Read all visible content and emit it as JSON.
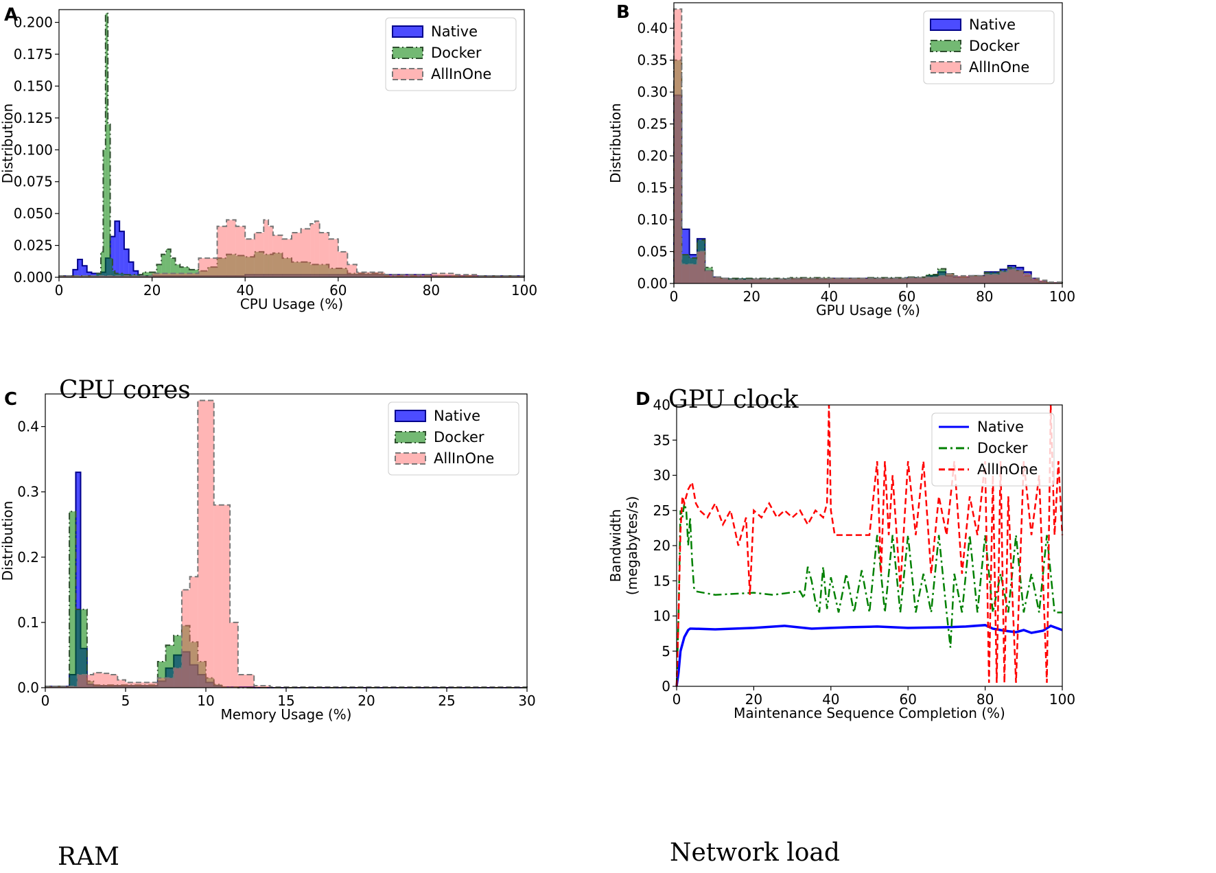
{
  "panels": [
    {
      "letter": "A",
      "caption": "CPU cores",
      "chart_data": {
        "type": "histogram",
        "xlabel": "CPU Usage (%)",
        "ylabel": "Distribution",
        "xlim": [
          0,
          100
        ],
        "ylim": [
          0,
          0.21
        ],
        "xticks": [
          0,
          20,
          40,
          60,
          80,
          100
        ],
        "yticks": [
          0.0,
          0.025,
          0.05,
          0.075,
          0.1,
          0.125,
          0.15,
          0.175,
          0.2
        ],
        "ytick_labels": [
          "0.000",
          "0.025",
          "0.050",
          "0.075",
          "0.100",
          "0.125",
          "0.150",
          "0.175",
          "0.200"
        ],
        "legend_position": "top-right",
        "series": [
          {
            "name": "Native",
            "edges": [
              0,
              3,
              4,
              5,
              6,
              7,
              8,
              9,
              10,
              11,
              12,
              13,
              14,
              15,
              16,
              17,
              18,
              20,
              25,
              30,
              35,
              40,
              45,
              50,
              55,
              60,
              65,
              70,
              80,
              90,
              100
            ],
            "values": [
              0.001,
              0.006,
              0.014,
              0.009,
              0.004,
              0.003,
              0.003,
              0.004,
              0.015,
              0.032,
              0.044,
              0.036,
              0.022,
              0.012,
              0.005,
              0.002,
              0.001,
              0.001,
              0.001,
              0.001,
              0.001,
              0.002,
              0.002,
              0.002,
              0.002,
              0.002,
              0.002,
              0.002,
              0.001,
              0.001
            ]
          },
          {
            "name": "Docker",
            "edges": [
              0,
              8,
              9,
              9.5,
              10,
              10.5,
              11,
              11.5,
              12,
              14,
              18,
              21,
              22,
              23,
              24,
              25,
              26,
              28,
              30,
              32,
              34,
              36,
              38,
              40,
              42,
              44,
              46,
              48,
              50,
              54,
              58,
              62,
              70,
              100
            ],
            "values": [
              0.001,
              0.003,
              0.02,
              0.1,
              0.207,
              0.12,
              0.015,
              0.005,
              0.003,
              0.002,
              0.004,
              0.01,
              0.018,
              0.022,
              0.015,
              0.01,
              0.008,
              0.006,
              0.005,
              0.008,
              0.015,
              0.018,
              0.017,
              0.016,
              0.02,
              0.018,
              0.019,
              0.015,
              0.012,
              0.01,
              0.007,
              0.003,
              0.001
            ]
          },
          {
            "name": "AllInOne",
            "edges": [
              0,
              20,
              30,
              34,
              36,
              38,
              40,
              42,
              44,
              45,
              46,
              48,
              50,
              52,
              54,
              55,
              56,
              58,
              60,
              62,
              64,
              70,
              80,
              85,
              90,
              100
            ],
            "values": [
              0.001,
              0.003,
              0.015,
              0.04,
              0.045,
              0.04,
              0.03,
              0.035,
              0.045,
              0.04,
              0.033,
              0.03,
              0.035,
              0.038,
              0.042,
              0.044,
              0.035,
              0.03,
              0.02,
              0.01,
              0.004,
              0.002,
              0.003,
              0.002,
              0.001
            ]
          }
        ]
      }
    },
    {
      "letter": "B",
      "caption": "GPU clock",
      "chart_data": {
        "type": "histogram",
        "xlabel": "GPU Usage (%)",
        "ylabel": "Distribution",
        "xlim": [
          0,
          100
        ],
        "ylim": [
          0,
          0.44
        ],
        "xticks": [
          0,
          20,
          40,
          60,
          80,
          100
        ],
        "yticks": [
          0.0,
          0.05,
          0.1,
          0.15,
          0.2,
          0.25,
          0.3,
          0.35,
          0.4
        ],
        "ytick_labels": [
          "0.00",
          "0.05",
          "0.10",
          "0.15",
          "0.20",
          "0.25",
          "0.30",
          "0.35",
          "0.40"
        ],
        "legend_position": "top-right",
        "series": [
          {
            "name": "Native",
            "edges": [
              0,
              2,
              4,
              6,
              8,
              10,
              12,
              14,
              20,
              30,
              40,
              50,
              60,
              65,
              68,
              70,
              72,
              76,
              80,
              84,
              86,
              88,
              90,
              92,
              94,
              96,
              100
            ],
            "values": [
              0.295,
              0.085,
              0.045,
              0.07,
              0.02,
              0.01,
              0.008,
              0.007,
              0.007,
              0.007,
              0.008,
              0.008,
              0.009,
              0.012,
              0.018,
              0.012,
              0.01,
              0.012,
              0.018,
              0.022,
              0.028,
              0.025,
              0.018,
              0.008,
              0.003,
              0.001
            ]
          },
          {
            "name": "Docker",
            "edges": [
              0,
              2,
              4,
              6,
              8,
              10,
              12,
              14,
              20,
              30,
              40,
              50,
              60,
              65,
              68,
              70,
              72,
              76,
              80,
              84,
              86,
              88,
              90,
              92,
              94,
              96,
              100
            ],
            "values": [
              0.35,
              0.045,
              0.04,
              0.068,
              0.025,
              0.01,
              0.008,
              0.008,
              0.008,
              0.009,
              0.008,
              0.009,
              0.01,
              0.014,
              0.023,
              0.015,
              0.01,
              0.012,
              0.017,
              0.02,
              0.025,
              0.02,
              0.012,
              0.006,
              0.003,
              0.001
            ]
          },
          {
            "name": "AllInOne",
            "edges": [
              0,
              2,
              4,
              6,
              8,
              10,
              12,
              14,
              20,
              30,
              40,
              50,
              60,
              65,
              68,
              70,
              72,
              76,
              80,
              84,
              86,
              88,
              90,
              92,
              94,
              96,
              100
            ],
            "values": [
              0.43,
              0.03,
              0.03,
              0.05,
              0.02,
              0.01,
              0.008,
              0.006,
              0.007,
              0.008,
              0.008,
              0.008,
              0.009,
              0.01,
              0.012,
              0.015,
              0.012,
              0.012,
              0.014,
              0.018,
              0.022,
              0.02,
              0.015,
              0.008,
              0.005,
              0.002
            ]
          }
        ]
      }
    },
    {
      "letter": "C",
      "caption": "RAM",
      "chart_data": {
        "type": "histogram",
        "xlabel": "Memory Usage (%)",
        "ylabel": "Distribution",
        "xlim": [
          0,
          30
        ],
        "ylim": [
          0,
          0.45
        ],
        "xticks": [
          0,
          5,
          10,
          15,
          20,
          25,
          30
        ],
        "yticks": [
          0.0,
          0.1,
          0.2,
          0.3,
          0.4
        ],
        "ytick_labels": [
          "0.0",
          "0.1",
          "0.2",
          "0.3",
          "0.4"
        ],
        "legend_position": "top-right",
        "series": [
          {
            "name": "Native",
            "edges": [
              0,
              1.5,
              1.9,
              2.2,
              2.6,
              3,
              5,
              7,
              7.5,
              8,
              8.5,
              9,
              9.5,
              10,
              10.5,
              11,
              12,
              13,
              30
            ],
            "values": [
              0.002,
              0.02,
              0.33,
              0.06,
              0.005,
              0.003,
              0.003,
              0.01,
              0.03,
              0.05,
              0.055,
              0.035,
              0.02,
              0.008,
              0.003,
              0.001,
              0.001,
              0.0
            ]
          },
          {
            "name": "Docker",
            "edges": [
              0,
              1.5,
              1.9,
              2.2,
              2.6,
              3,
              5,
              7,
              7.5,
              8,
              8.5,
              9,
              9.5,
              10,
              10.5,
              11,
              12,
              30
            ],
            "values": [
              0.002,
              0.27,
              0.12,
              0.12,
              0.01,
              0.004,
              0.004,
              0.04,
              0.065,
              0.08,
              0.095,
              0.07,
              0.04,
              0.015,
              0.005,
              0.001,
              0.0
            ]
          },
          {
            "name": "AllInOne",
            "edges": [
              0,
              2,
              3,
              3.5,
              4,
              4.5,
              5,
              6,
              7,
              8,
              8.5,
              9,
              9.5,
              10,
              10.5,
              11,
              11.5,
              12,
              13,
              14,
              30
            ],
            "values": [
              0.002,
              0.02,
              0.023,
              0.022,
              0.02,
              0.012,
              0.008,
              0.008,
              0.015,
              0.03,
              0.15,
              0.17,
              0.44,
              0.44,
              0.28,
              0.28,
              0.1,
              0.02,
              0.003,
              0.001
            ]
          }
        ]
      }
    },
    {
      "letter": "D",
      "caption": "Network load",
      "chart_data": {
        "type": "line",
        "xlabel": "Maintenance Sequence Completion (%)",
        "ylabel_lines": [
          "Bandwidth",
          "(megabytes/s)"
        ],
        "xlim": [
          0,
          100
        ],
        "ylim": [
          0,
          40
        ],
        "xticks": [
          0,
          20,
          40,
          60,
          80,
          100
        ],
        "yticks": [
          0,
          5,
          10,
          15,
          20,
          25,
          30,
          35,
          40
        ],
        "legend_position": "top-right",
        "series": [
          {
            "name": "Native",
            "style": "solid",
            "x": [
              0,
              0.5,
              1,
              1.5,
              2,
              2.5,
              3,
              3.5,
              4,
              10,
              20,
              28,
              35,
              40,
              45,
              52,
              60,
              70,
              75,
              80,
              82,
              85,
              88,
              90,
              92,
              95,
              97,
              100
            ],
            "y": [
              0,
              2,
              5,
              6,
              7,
              7.5,
              8,
              8.2,
              8.2,
              8.1,
              8.3,
              8.6,
              8.2,
              8.3,
              8.4,
              8.5,
              8.3,
              8.4,
              8.5,
              8.7,
              8.2,
              7.9,
              7.7,
              8.0,
              7.6,
              7.9,
              8.6,
              8.0
            ]
          },
          {
            "name": "Docker",
            "style": "dashdot",
            "x": [
              0,
              0.5,
              1,
              1.5,
              2,
              2.5,
              3,
              3.5,
              4,
              4.5,
              5,
              10,
              20,
              25,
              32,
              33,
              34,
              35,
              36,
              37,
              38,
              39,
              40,
              42,
              44,
              46,
              48,
              50,
              52,
              54,
              56,
              58,
              60,
              62,
              64,
              66,
              68,
              70,
              71,
              72,
              74,
              76,
              78,
              80,
              82,
              84,
              86,
              88,
              90,
              92,
              94,
              96,
              98,
              100
            ],
            "y": [
              0,
              10,
              25,
              24,
              26,
              25,
              20,
              24,
              18,
              14,
              13.5,
              13,
              13.3,
              13,
              13.5,
              12.5,
              17,
              15,
              12,
              10.5,
              17,
              11,
              15.5,
              10.5,
              16,
              10.5,
              16.5,
              10.5,
              21.5,
              10.5,
              21.5,
              10.5,
              21.5,
              10.5,
              16,
              10.5,
              21.5,
              10.5,
              5.5,
              16,
              10.5,
              21.5,
              10.5,
              21.5,
              10.5,
              16,
              10.5,
              21.5,
              10.5,
              16,
              10.5,
              21.5,
              10.5,
              10.5
            ]
          },
          {
            "name": "AllInOne",
            "style": "dashed",
            "x": [
              0,
              0.5,
              1,
              1.5,
              2,
              3,
              4,
              5,
              6,
              8,
              10,
              12,
              14,
              16,
              18,
              19,
              20,
              22,
              24,
              26,
              28,
              30,
              32,
              34,
              36,
              38,
              39,
              39.5,
              40,
              41,
              44,
              48,
              50,
              52,
              53,
              54,
              55,
              56,
              58,
              60,
              62,
              64,
              66,
              68,
              70,
              72,
              74,
              76,
              78,
              80,
              81,
              82,
              83,
              84,
              85,
              86,
              88,
              90,
              92,
              94,
              96,
              97,
              98,
              99,
              100
            ],
            "y": [
              0,
              10,
              22,
              27,
              26,
              28,
              29,
              26,
              25,
              24,
              26,
              23,
              25,
              20,
              24,
              13,
              25,
              24,
              26,
              24,
              25,
              24,
              25,
              23,
              25,
              24,
              26,
              40,
              25,
              21.5,
              21.5,
              21.5,
              21.5,
              32,
              16,
              32,
              21.5,
              30,
              14,
              32,
              21.5,
              32,
              16,
              27,
              21.5,
              32,
              16,
              27,
              21.5,
              32,
              0.5,
              30,
              0.5,
              32,
              0.5,
              27,
              0.5,
              32,
              21.5,
              30,
              0.5,
              40,
              21.5,
              32,
              21.5
            ]
          }
        ]
      }
    }
  ],
  "styles": {
    "Native": {
      "fill": "#0000ff",
      "fill_opacity": 0.7,
      "stroke": "#00008b",
      "line": "#0000ff"
    },
    "Docker": {
      "fill": "#008000",
      "fill_opacity": 0.55,
      "stroke": "#2f4f2f",
      "line": "#008000"
    },
    "AllInOne": {
      "fill": "#ff6b6b",
      "fill_opacity": 0.5,
      "stroke": "#777777",
      "line": "#ff0000"
    }
  }
}
